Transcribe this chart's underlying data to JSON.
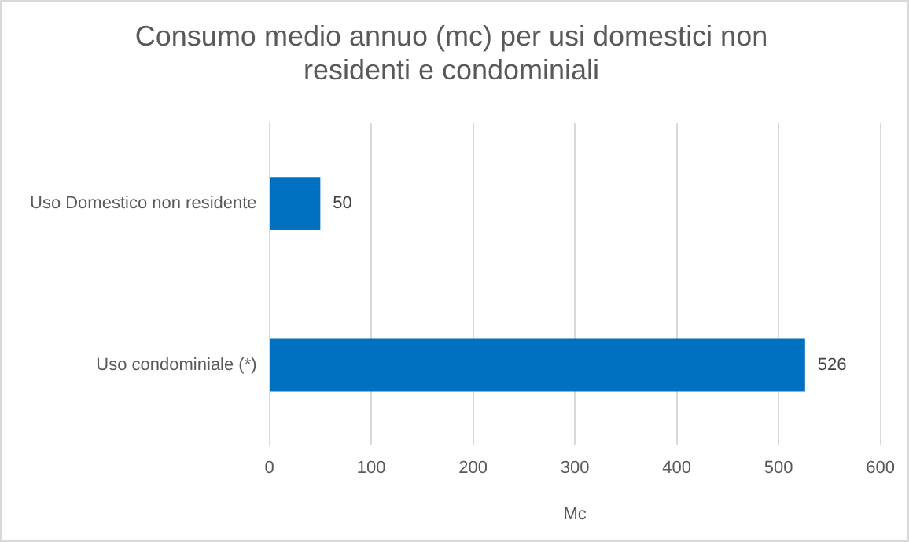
{
  "chart_data": {
    "type": "bar",
    "orientation": "horizontal",
    "title": "Consumo medio annuo (mc) per usi domestici non residenti e condominiali",
    "categories": [
      "Uso Domestico non residente",
      "Uso condominiale (*)"
    ],
    "values": [
      50,
      526
    ],
    "color": "#0070c0",
    "xlabel": "Mc",
    "xlim": [
      0,
      600
    ],
    "xticks": [
      0,
      100,
      200,
      300,
      400,
      500,
      600
    ],
    "grid": "x",
    "data_labels": true,
    "legend": false
  }
}
